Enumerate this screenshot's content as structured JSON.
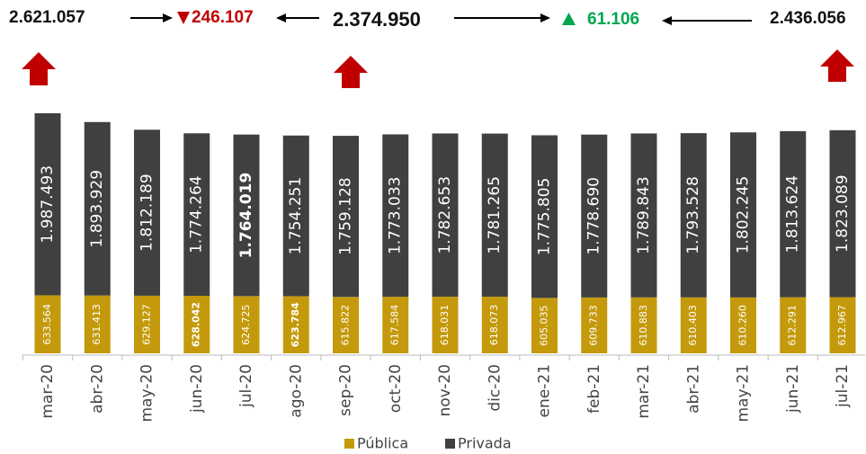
{
  "chart_data": {
    "type": "stacked-bar",
    "categories": [
      "mar-20",
      "abr-20",
      "may-20",
      "jun-20",
      "jul-20",
      "ago-20",
      "sep-20",
      "oct-20",
      "nov-20",
      "dic-20",
      "ene-21",
      "feb-21",
      "mar-21",
      "abr-21",
      "may-21",
      "jun-21",
      "jul-21"
    ],
    "series": [
      {
        "name": "Pública",
        "color": "#c49a0c",
        "values": [
          633564,
          631413,
          629127,
          628042,
          624725,
          623784,
          615822,
          617584,
          618031,
          618073,
          605035,
          609733,
          610883,
          610403,
          610260,
          612291,
          612967
        ],
        "value_labels": [
          "633.564",
          "631.413",
          "629.127",
          "628.042",
          "624.725",
          "623.784",
          "615.822",
          "617.584",
          "618.031",
          "618.073",
          "605.035",
          "609.733",
          "610.883",
          "610.403",
          "610.260",
          "612.291",
          "612.967"
        ]
      },
      {
        "name": "Privada",
        "color": "#404040",
        "values": [
          1987493,
          1893929,
          1812189,
          1774264,
          1764019,
          1754251,
          1759128,
          1773033,
          1782653,
          1781265,
          1775805,
          1778690,
          1789843,
          1793528,
          1802245,
          1813624,
          1823089
        ],
        "value_labels": [
          "1.987.493",
          "1.893.929",
          "1.812.189",
          "1.774.264",
          "1.764.019",
          "1.754.251",
          "1.759.128",
          "1.773.033",
          "1.782.653",
          "1.781.265",
          "1.775.805",
          "1.778.690",
          "1.789.843",
          "1.793.528",
          "1.802.245",
          "1.813.624",
          "1.823.089"
        ]
      }
    ],
    "annotations": [
      "2.621.057",
      "246.107",
      "2.374.950",
      "61.106",
      "2.436.056"
    ]
  }
}
